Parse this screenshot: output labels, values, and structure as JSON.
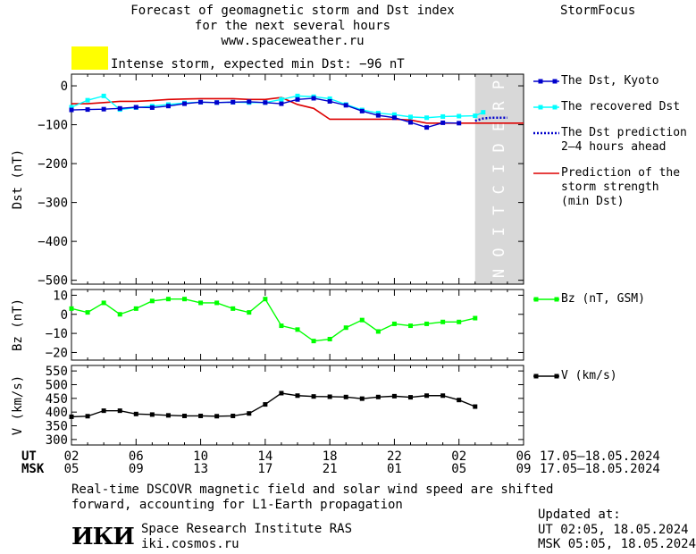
{
  "header": {
    "title_line1": "Forecast of geomagnetic storm and Dst index",
    "title_line2": "for the next several hours",
    "url": "www.spaceweather.ru",
    "brand": "StormFocus"
  },
  "storm_banner": {
    "text": "Intense storm, expected min Dst: −96 nT",
    "color": "#ffff00"
  },
  "prediction_label": "PREDICTION",
  "legends": {
    "dst_kyoto": "The Dst, Kyoto",
    "recovered": "The recovered Dst",
    "prediction_1": "The Dst prediction",
    "prediction_2": "2–4 hours ahead",
    "strength_1": "Prediction of the",
    "strength_2": "storm strength",
    "strength_3": "(min Dst)",
    "bz": "Bz (nT, GSM)",
    "v": "V (km/s)"
  },
  "time_axis": {
    "ut_label": "UT",
    "msk_label": "MSK",
    "ut_ticks": [
      "02",
      "06",
      "10",
      "14",
      "18",
      "22",
      "02",
      "06"
    ],
    "msk_ticks": [
      "05",
      "09",
      "13",
      "17",
      "21",
      "01",
      "05",
      "09"
    ],
    "ut_range": "17.05–18.05.2024",
    "msk_range": "17.05–18.05.2024"
  },
  "footer": {
    "note_line1": "Real-time DSCOVR magnetic field and solar wind speed are shifted",
    "note_line2": "forward, accounting for L1-Earth propagation",
    "logo_text": "ИКИ",
    "institute": "Space Research Institute RAS",
    "site": "iki.cosmos.ru",
    "updated_label": "Updated at:",
    "updated_ut": "UT   02:05, 18.05.2024",
    "updated_msk": "MSK 05:05, 18.05.2024"
  },
  "colors": {
    "dst_kyoto": "#0000cc",
    "recovered": "#00ffff",
    "prediction": "#0000cc",
    "strength": "#dd0000",
    "bz": "#00ff00",
    "v": "#000000",
    "prediction_zone": "#d8d8d8"
  },
  "chart_data": [
    {
      "type": "line",
      "ylabel": "Dst (nT)",
      "ylim": [
        -510,
        30
      ],
      "yticks": [
        0,
        -100,
        -200,
        -300,
        -400,
        -500
      ],
      "xlim": [
        2,
        30
      ],
      "prediction_zone": [
        27,
        30
      ],
      "series": [
        {
          "name": "The Dst, Kyoto",
          "x": [
            2,
            3,
            4,
            5,
            6,
            7,
            8,
            9,
            10,
            11,
            12,
            13,
            14,
            15,
            16,
            17,
            18,
            19,
            20,
            21,
            22,
            23,
            24,
            25,
            26
          ],
          "values": [
            -62,
            -61,
            -60,
            -58,
            -55,
            -56,
            -52,
            -46,
            -42,
            -43,
            -42,
            -41,
            -43,
            -46,
            -35,
            -32,
            -40,
            -50,
            -65,
            -76,
            -82,
            -94,
            -107,
            -95,
            -96
          ]
        },
        {
          "name": "The recovered Dst",
          "x": [
            2,
            3,
            4,
            5,
            6,
            7,
            8,
            9,
            10,
            11,
            12,
            13,
            14,
            15,
            16,
            17,
            18,
            19,
            20,
            21,
            22,
            23,
            24,
            25,
            26,
            27,
            27.5
          ],
          "values": [
            -55,
            -37,
            -26,
            -61,
            -56,
            -52,
            -48,
            -44,
            -42,
            -43,
            -42,
            -43,
            -43,
            -35,
            -26,
            -28,
            -33,
            -48,
            -62,
            -70,
            -74,
            -80,
            -82,
            -79,
            -78,
            -77,
            -68
          ]
        },
        {
          "name": "The Dst prediction 2–4 hours ahead",
          "x": [
            27,
            27.5,
            28,
            29
          ],
          "values": [
            -90,
            -84,
            -82,
            -82
          ]
        },
        {
          "name": "Prediction of the storm strength (min Dst)",
          "x": [
            2,
            3,
            4,
            5,
            6,
            7,
            8,
            9,
            10,
            11,
            12,
            13,
            14,
            15,
            16,
            17,
            18,
            19,
            20,
            21,
            22,
            23,
            24,
            25,
            26,
            27,
            28,
            29,
            30
          ],
          "values": [
            -46,
            -46,
            -43,
            -40,
            -40,
            -38,
            -35,
            -34,
            -33,
            -33,
            -33,
            -35,
            -35,
            -30,
            -48,
            -58,
            -86,
            -86,
            -86,
            -86,
            -86,
            -88,
            -96,
            -96,
            -96,
            -96,
            -96,
            -96,
            -96
          ]
        }
      ]
    },
    {
      "type": "line",
      "ylabel": "Bz (nT)",
      "ylim": [
        -24,
        13
      ],
      "yticks": [
        10,
        0,
        -10,
        -20
      ],
      "xlim": [
        2,
        30
      ],
      "series": [
        {
          "name": "Bz (nT, GSM)",
          "x": [
            2,
            3,
            4,
            5,
            6,
            7,
            8,
            9,
            10,
            11,
            12,
            13,
            14,
            15,
            16,
            17,
            18,
            19,
            20,
            21,
            22,
            23,
            24,
            25,
            26,
            27
          ],
          "values": [
            3,
            1,
            6,
            0,
            3,
            7,
            8,
            8,
            6,
            6,
            3,
            1,
            8,
            -6,
            -8,
            -14,
            -13,
            -7,
            -3,
            -9,
            -5,
            -6,
            -5,
            -4,
            -4,
            -2
          ]
        }
      ]
    },
    {
      "type": "line",
      "ylabel": "V (km/s)",
      "ylim": [
        280,
        570
      ],
      "yticks": [
        300,
        350,
        400,
        450,
        500,
        550
      ],
      "xlim": [
        2,
        30
      ],
      "series": [
        {
          "name": "V (km/s)",
          "x": [
            2,
            3,
            4,
            5,
            6,
            7,
            8,
            9,
            10,
            11,
            12,
            13,
            14,
            15,
            16,
            17,
            18,
            19,
            20,
            21,
            22,
            23,
            24,
            25,
            26,
            27
          ],
          "values": [
            383,
            385,
            405,
            405,
            393,
            391,
            388,
            386,
            386,
            385,
            386,
            395,
            428,
            469,
            460,
            457,
            456,
            455,
            449,
            455,
            458,
            454,
            460,
            460,
            444,
            420
          ]
        }
      ]
    }
  ]
}
